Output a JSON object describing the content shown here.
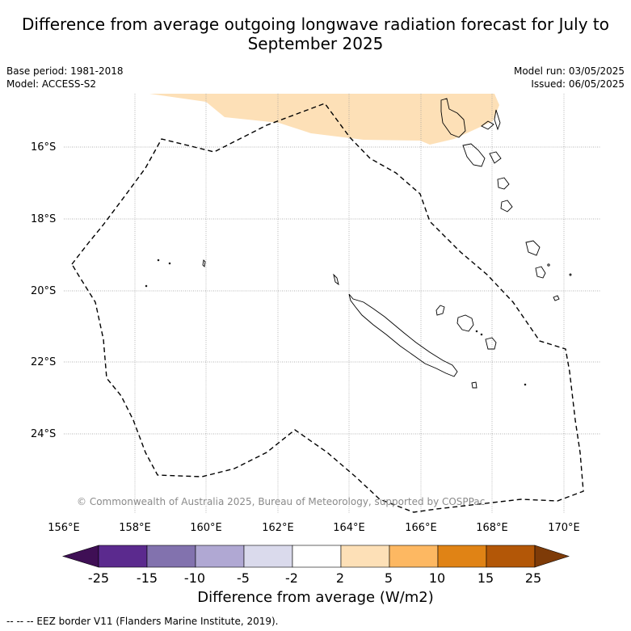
{
  "title": "Difference from average outgoing longwave radiation forecast for July to September 2025",
  "base_period": "Base period: 1981-2018",
  "model": "Model: ACCESS-S2",
  "model_run": "Model run: 03/05/2025",
  "issued": "Issued: 06/05/2025",
  "lat_labels": [
    "16°S",
    "18°S",
    "20°S",
    "22°S",
    "24°S"
  ],
  "lon_labels": [
    "156°E",
    "158°E",
    "160°E",
    "162°E",
    "164°E",
    "166°E",
    "168°E",
    "170°E"
  ],
  "copyright": "© Commonwealth of Australia 2025, Bureau of Meteorology, supported by COSPPac",
  "colorbar": {
    "title": "Difference from average (W/m2)",
    "ticks": [
      "-25",
      "-15",
      "-10",
      "-5",
      "-2",
      "2",
      "5",
      "10",
      "15",
      "25"
    ],
    "colors": [
      "#3f0f55",
      "#5b2a8e",
      "#8272ae",
      "#b0a8d3",
      "#dadaec",
      "#ffffff",
      "#fde0b7",
      "#fdb862",
      "#e08315",
      "#b35707",
      "#7e3b08"
    ]
  },
  "eez_legend": "-- -- -- EEZ border V11 (Flanders Marine Institute, 2019).",
  "forecast_anomaly": {
    "region": "north of map",
    "category": "2 to 5 W/m2",
    "color": "#fde0b7"
  }
}
